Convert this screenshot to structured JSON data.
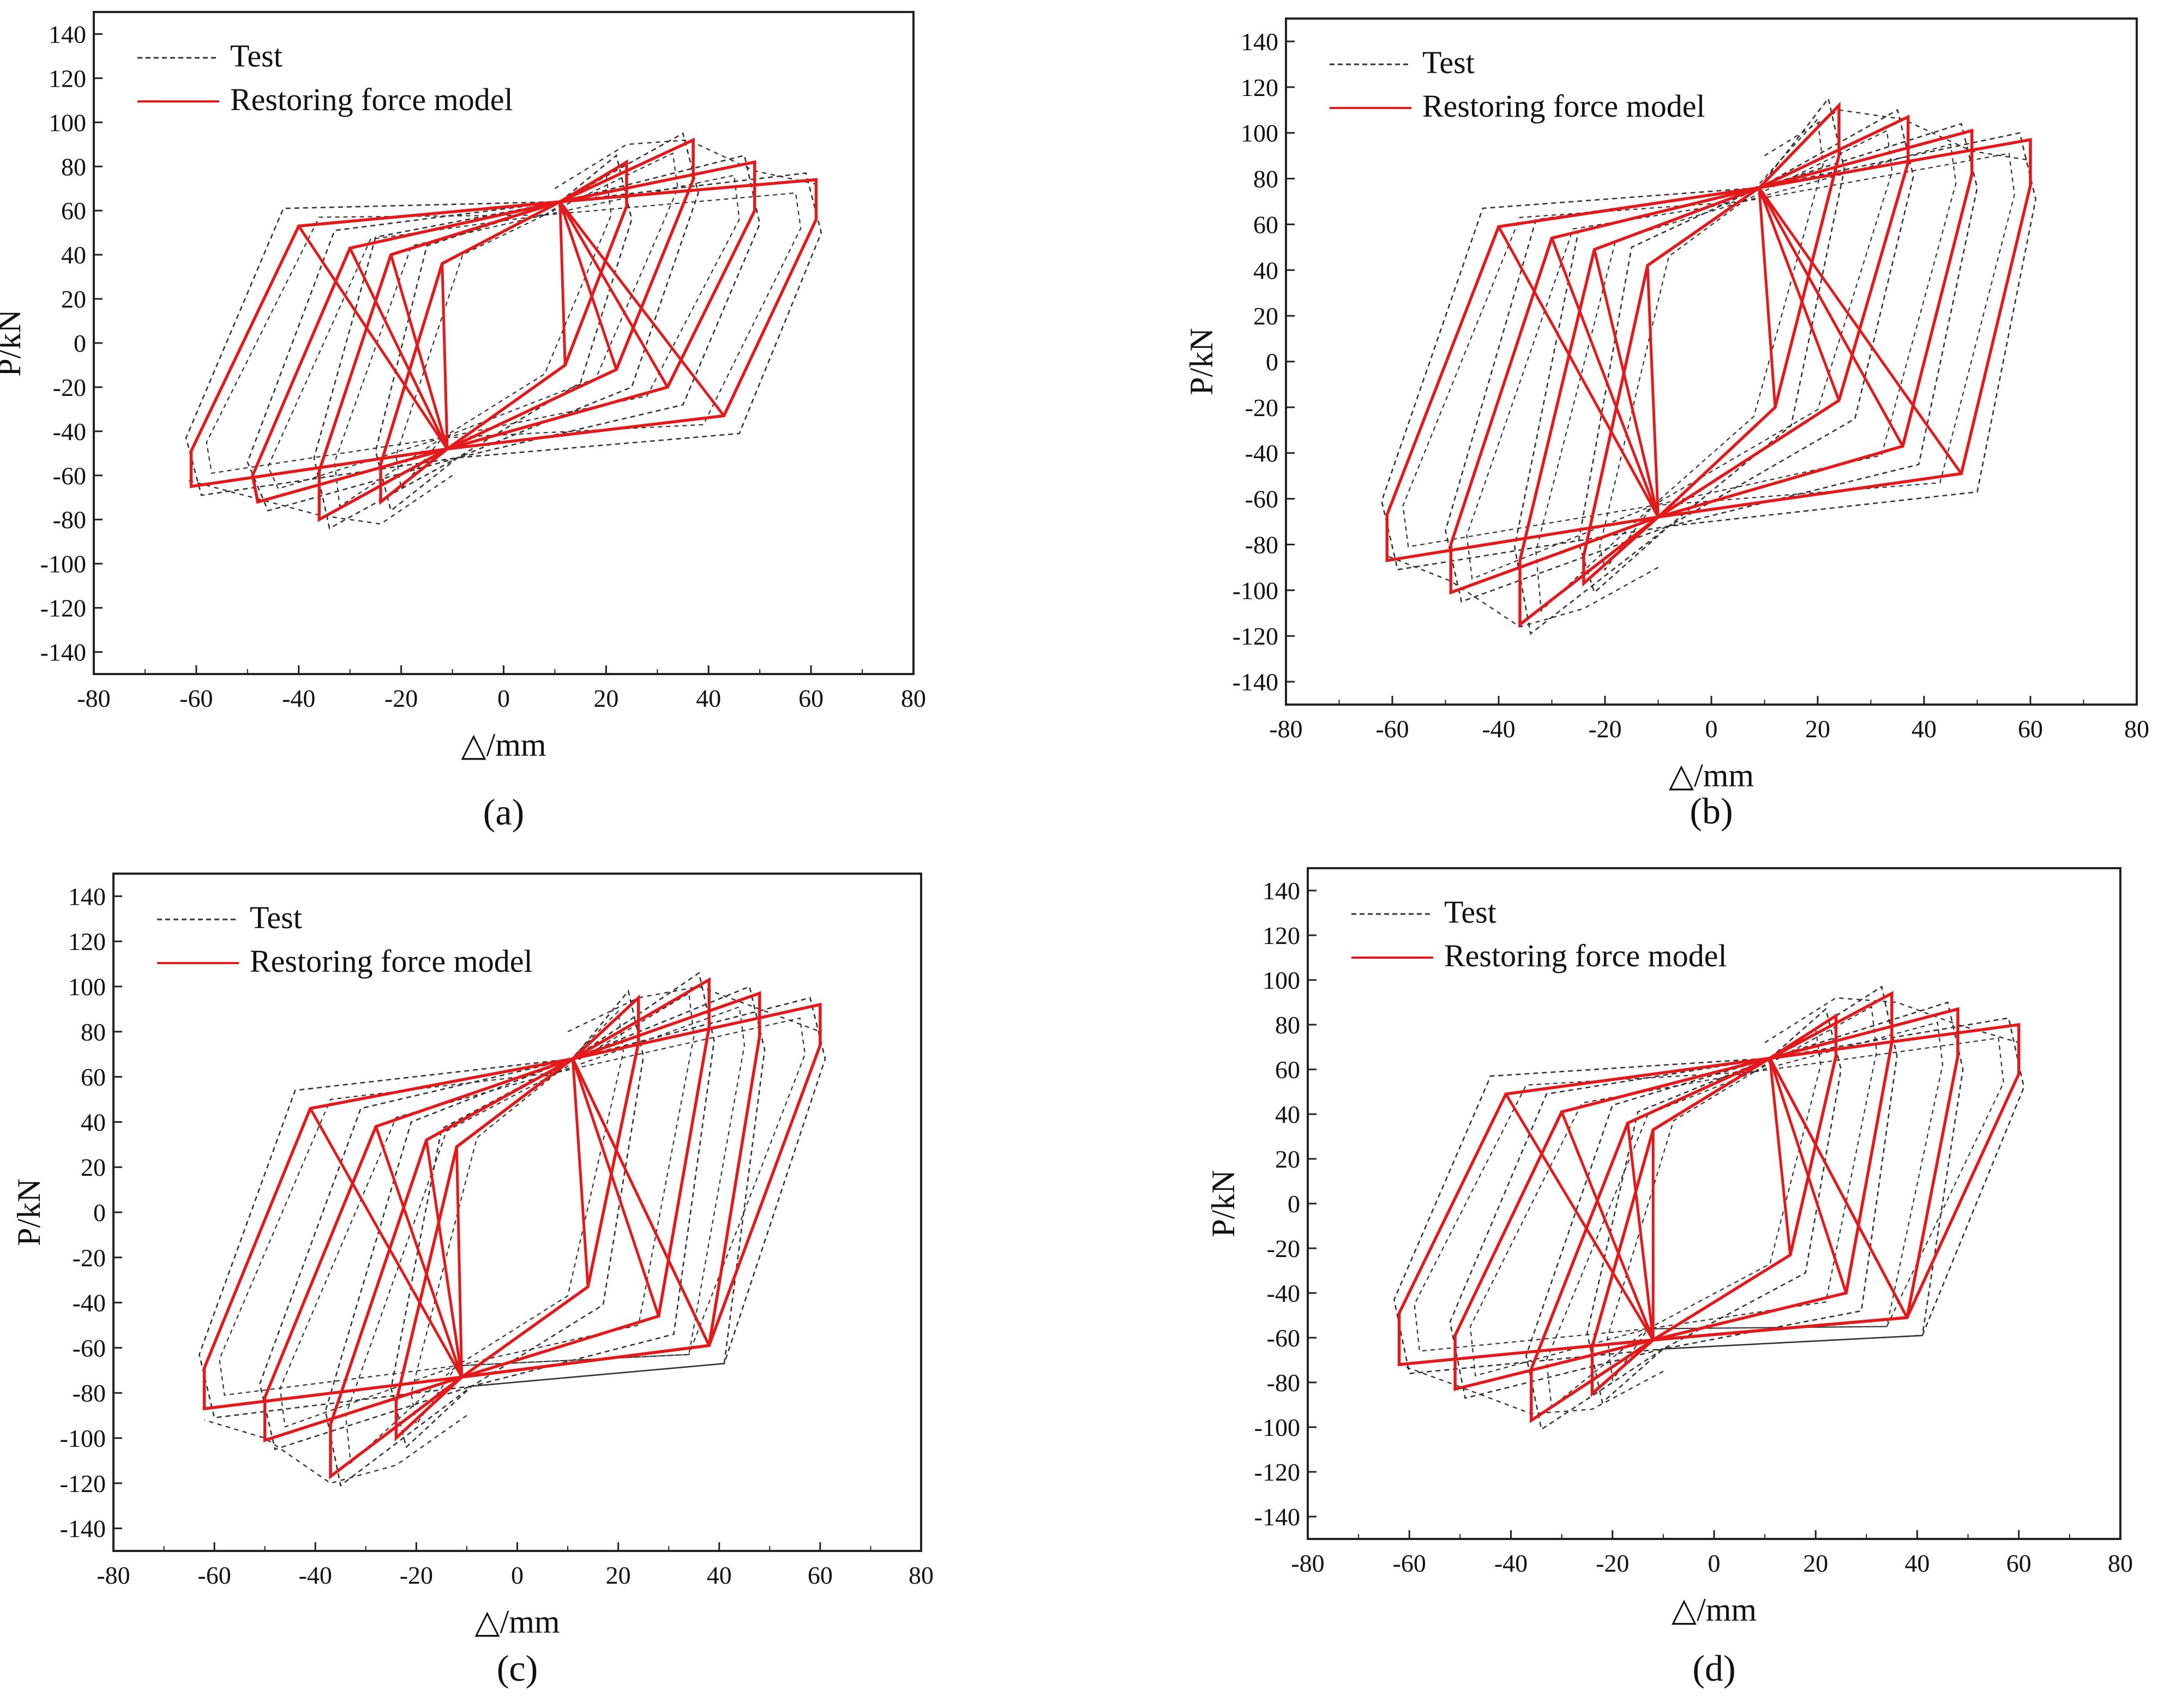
{
  "figure": {
    "panel_labels": [
      "(a)",
      "(b)",
      "(c)",
      "(d)"
    ]
  },
  "colors": {
    "model": "#e31a1c",
    "test": "#333333",
    "axis": "#222222"
  },
  "chart_data": [
    {
      "type": "line",
      "panel": "(a)",
      "xlabel": "△/mm",
      "ylabel": "P/kN",
      "xlim": [
        -80,
        80
      ],
      "ylim": [
        -150,
        150
      ],
      "xticks": [
        -80,
        -60,
        -40,
        -20,
        0,
        20,
        40,
        60,
        80
      ],
      "yticks": [
        140,
        120,
        100,
        80,
        60,
        40,
        20,
        0,
        -20,
        -40,
        -60,
        -80,
        -100,
        -120,
        -140
      ],
      "legend": [
        {
          "label": "Test",
          "style": "dashed"
        },
        {
          "label": "Restoring force model",
          "style": "solid"
        }
      ],
      "series": [
        {
          "name": "Restoring force model",
          "cycles": [
            {
              "pos_peak": [
                24,
                82
              ],
              "pos_unload": [
                24,
                62
              ],
              "pos_recon": [
                12,
                -10
              ],
              "neg_peak": [
                -24,
                -72
              ],
              "neg_unload": [
                -24,
                -55
              ],
              "neg_recon": [
                -12,
                36
              ],
              "focus_pos": [
                11,
                64
              ],
              "focus_neg": [
                -11,
                -48
              ]
            },
            {
              "pos_peak": [
                37,
                92
              ],
              "pos_unload": [
                37,
                74
              ],
              "pos_recon": [
                22,
                -12
              ],
              "neg_peak": [
                -36,
                -80
              ],
              "neg_unload": [
                -36,
                -58
              ],
              "neg_recon": [
                -22,
                40
              ],
              "focus_pos": [
                11,
                64
              ],
              "focus_neg": [
                -11,
                -48
              ]
            },
            {
              "pos_peak": [
                49,
                82
              ],
              "pos_unload": [
                49,
                60
              ],
              "pos_recon": [
                32,
                -20
              ],
              "neg_peak": [
                -48,
                -72
              ],
              "neg_unload": [
                -49,
                -60
              ],
              "neg_recon": [
                -30,
                43
              ],
              "focus_pos": [
                11,
                64
              ],
              "focus_neg": [
                -11,
                -48
              ]
            },
            {
              "pos_peak": [
                61,
                74
              ],
              "pos_unload": [
                61,
                56
              ],
              "pos_recon": [
                43,
                -33
              ],
              "neg_peak": [
                -61,
                -65
              ],
              "neg_unload": [
                -61,
                -49
              ],
              "neg_recon": [
                -40,
                53
              ],
              "focus_pos": [
                11,
                64
              ],
              "focus_neg": [
                -11,
                -48
              ]
            }
          ]
        },
        {
          "name": "Test",
          "peaks_pos": [
            [
              10,
              70
            ],
            [
              24,
              90
            ],
            [
              36,
              92
            ],
            [
              49,
              78
            ],
            [
              61,
              72
            ]
          ],
          "peaks_neg": [
            [
              -10,
              -60
            ],
            [
              -24,
              -82
            ],
            [
              -36,
              -78
            ],
            [
              -49,
              -70
            ],
            [
              -62,
              -62
            ]
          ]
        }
      ]
    },
    {
      "type": "line",
      "panel": "(b)",
      "xlabel": "△/mm",
      "ylabel": "P/kN",
      "xlim": [
        -80,
        80
      ],
      "ylim": [
        -150,
        150
      ],
      "xticks": [
        -80,
        -60,
        -40,
        -20,
        0,
        20,
        40,
        60,
        80
      ],
      "yticks": [
        140,
        120,
        100,
        80,
        60,
        40,
        20,
        0,
        -20,
        -40,
        -60,
        -80,
        -100,
        -120,
        -140
      ],
      "legend": [
        {
          "label": "Test",
          "style": "dashed"
        },
        {
          "label": "Restoring force model",
          "style": "solid"
        }
      ],
      "series": [
        {
          "name": "Restoring force model",
          "cycles": [
            {
              "pos_peak": [
                24,
                112
              ],
              "pos_unload": [
                24,
                90
              ],
              "pos_recon": [
                12,
                -20
              ],
              "neg_peak": [
                -24,
                -97
              ],
              "neg_unload": [
                -24,
                -85
              ],
              "neg_recon": [
                -12,
                42
              ],
              "focus_pos": [
                9,
                76
              ],
              "focus_neg": [
                -10,
                -68
              ]
            },
            {
              "pos_peak": [
                37,
                107
              ],
              "pos_unload": [
                37,
                87
              ],
              "pos_recon": [
                24,
                -17
              ],
              "neg_peak": [
                -36,
                -115
              ],
              "neg_unload": [
                -36,
                -87
              ],
              "neg_recon": [
                -22,
                49
              ],
              "focus_pos": [
                9,
                76
              ],
              "focus_neg": [
                -10,
                -68
              ]
            },
            {
              "pos_peak": [
                49,
                101
              ],
              "pos_unload": [
                49,
                82
              ],
              "pos_recon": [
                36,
                -37
              ],
              "neg_peak": [
                -49,
                -101
              ],
              "neg_unload": [
                -49,
                -80
              ],
              "neg_recon": [
                -30,
                54
              ],
              "focus_pos": [
                9,
                76
              ],
              "focus_neg": [
                -10,
                -68
              ]
            },
            {
              "pos_peak": [
                60,
                97
              ],
              "pos_unload": [
                60,
                77
              ],
              "pos_recon": [
                47,
                -49
              ],
              "neg_peak": [
                -61,
                -87
              ],
              "neg_unload": [
                -61,
                -67
              ],
              "neg_recon": [
                -40,
                59
              ],
              "focus_pos": [
                9,
                76
              ],
              "focus_neg": [
                -10,
                -68
              ]
            }
          ]
        },
        {
          "name": "Test",
          "peaks_pos": [
            [
              10,
              90
            ],
            [
              24,
              110
            ],
            [
              36,
              106
            ],
            [
              49,
              92
            ],
            [
              60,
              88
            ]
          ],
          "peaks_neg": [
            [
              -10,
              -90
            ],
            [
              -24,
              -108
            ],
            [
              -36,
              -116
            ],
            [
              -49,
              -96
            ],
            [
              -61,
              -85
            ]
          ]
        }
      ]
    },
    {
      "type": "line",
      "panel": "(c)",
      "xlabel": "△/mm",
      "ylabel": "P/kN",
      "xlim": [
        -80,
        80
      ],
      "ylim": [
        -150,
        150
      ],
      "xticks": [
        -80,
        -60,
        -40,
        -20,
        0,
        20,
        40,
        60,
        80
      ],
      "yticks": [
        140,
        120,
        100,
        80,
        60,
        40,
        20,
        0,
        -20,
        -40,
        -60,
        -80,
        -100,
        -120,
        -140
      ],
      "legend": [
        {
          "label": "Test",
          "style": "dashed"
        },
        {
          "label": "Restoring force model",
          "style": "solid"
        }
      ],
      "series": [
        {
          "name": "Restoring force model",
          "cycles": [
            {
              "pos_peak": [
                24,
                95
              ],
              "pos_unload": [
                24,
                75
              ],
              "pos_recon": [
                14,
                -33
              ],
              "neg_peak": [
                -24,
                -100
              ],
              "neg_unload": [
                -24,
                -84
              ],
              "neg_recon": [
                -12,
                29
              ],
              "focus_pos": [
                11,
                68
              ],
              "focus_neg": [
                -11,
                -73
              ]
            },
            {
              "pos_peak": [
                38,
                103
              ],
              "pos_unload": [
                38,
                82
              ],
              "pos_recon": [
                28,
                -46
              ],
              "neg_peak": [
                -37,
                -117
              ],
              "neg_unload": [
                -37,
                -94
              ],
              "neg_recon": [
                -18,
                32
              ],
              "focus_pos": [
                11,
                68
              ],
              "focus_neg": [
                -11,
                -73
              ]
            },
            {
              "pos_peak": [
                48,
                97
              ],
              "pos_unload": [
                48,
                78
              ],
              "pos_recon": [
                38,
                -59
              ],
              "neg_peak": [
                -50,
                -101
              ],
              "neg_unload": [
                -50,
                -82
              ],
              "neg_recon": [
                -28,
                38
              ],
              "focus_pos": [
                11,
                68
              ],
              "focus_neg": [
                -11,
                -73
              ]
            },
            {
              "pos_peak": [
                60,
                92
              ],
              "pos_unload": [
                60,
                74
              ],
              "pos_recon": [
                38,
                -59
              ],
              "neg_peak": [
                -62,
                -87
              ],
              "neg_unload": [
                -62,
                -69
              ],
              "neg_recon": [
                -41,
                46
              ],
              "focus_pos": [
                11,
                68
              ],
              "focus_neg": [
                -11,
                -73
              ]
            }
          ]
        },
        {
          "name": "Test",
          "peaks_pos": [
            [
              10,
              80
            ],
            [
              24,
              95
            ],
            [
              36,
              100
            ],
            [
              48,
              90
            ],
            [
              60,
              80
            ]
          ],
          "peaks_neg": [
            [
              -10,
              -90
            ],
            [
              -24,
              -112
            ],
            [
              -37,
              -120
            ],
            [
              -50,
              -100
            ],
            [
              -62,
              -92
            ]
          ]
        }
      ]
    },
    {
      "type": "line",
      "panel": "(d)",
      "xlabel": "△/mm",
      "ylabel": "P/kN",
      "xlim": [
        -80,
        80
      ],
      "ylim": [
        -150,
        150
      ],
      "xticks": [
        -80,
        -60,
        -40,
        -20,
        0,
        20,
        40,
        60,
        80
      ],
      "yticks": [
        140,
        120,
        100,
        80,
        60,
        40,
        20,
        0,
        -20,
        -40,
        -60,
        -80,
        -100,
        -120,
        -140
      ],
      "legend": [
        {
          "label": "Test",
          "style": "dashed"
        },
        {
          "label": "Restoring force model",
          "style": "solid"
        }
      ],
      "series": [
        {
          "name": "Restoring force model",
          "cycles": [
            {
              "pos_peak": [
                24,
                84
              ],
              "pos_unload": [
                24,
                66
              ],
              "pos_recon": [
                15,
                -23
              ],
              "neg_peak": [
                -24,
                -85
              ],
              "neg_unload": [
                -24,
                -64
              ],
              "neg_recon": [
                -12,
                33
              ],
              "focus_pos": [
                11,
                65
              ],
              "focus_neg": [
                -12,
                -61
              ]
            },
            {
              "pos_peak": [
                35,
                94
              ],
              "pos_unload": [
                35,
                72
              ],
              "pos_recon": [
                26,
                -40
              ],
              "neg_peak": [
                -36,
                -97
              ],
              "neg_unload": [
                -36,
                -74
              ],
              "neg_recon": [
                -17,
                36
              ],
              "focus_pos": [
                11,
                65
              ],
              "focus_neg": [
                -12,
                -61
              ]
            },
            {
              "pos_peak": [
                48,
                87
              ],
              "pos_unload": [
                48,
                66
              ],
              "pos_recon": [
                38,
                -51
              ],
              "neg_peak": [
                -51,
                -83
              ],
              "neg_unload": [
                -51,
                -59
              ],
              "neg_recon": [
                -30,
                41
              ],
              "focus_pos": [
                11,
                65
              ],
              "focus_neg": [
                -12,
                -61
              ]
            },
            {
              "pos_peak": [
                60,
                80
              ],
              "pos_unload": [
                60,
                58
              ],
              "pos_recon": [
                38,
                -51
              ],
              "neg_peak": [
                -62,
                -72
              ],
              "neg_unload": [
                -62,
                -49
              ],
              "neg_recon": [
                -41,
                49
              ],
              "focus_pos": [
                11,
                65
              ],
              "focus_neg": [
                -12,
                -61
              ]
            }
          ]
        },
        {
          "name": "Test",
          "peaks_pos": [
            [
              10,
              72
            ],
            [
              24,
              92
            ],
            [
              36,
              90
            ],
            [
              48,
              80
            ],
            [
              60,
              72
            ]
          ],
          "peaks_neg": [
            [
              -10,
              -75
            ],
            [
              -24,
              -92
            ],
            [
              -36,
              -94
            ],
            [
              -50,
              -82
            ],
            [
              -62,
              -72
            ]
          ]
        }
      ]
    }
  ]
}
